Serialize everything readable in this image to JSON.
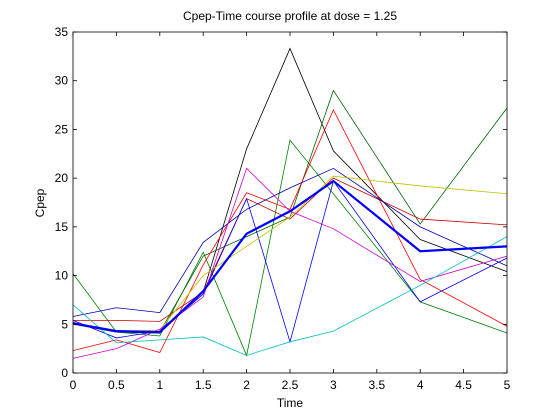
{
  "chart_data": {
    "type": "line",
    "title": "Cpep-Time course profile at dose = 1.25",
    "xlabel": "Time",
    "ylabel": "Cpep",
    "xlim": [
      0,
      5
    ],
    "ylim": [
      0,
      35
    ],
    "xticks": [
      "0",
      "0.5",
      "1",
      "1.5",
      "2",
      "2.5",
      "3",
      "3.5",
      "4",
      "4.5",
      "5"
    ],
    "yticks": [
      "0",
      "5",
      "10",
      "15",
      "20",
      "25",
      "30",
      "35"
    ],
    "grid": false,
    "legend": "none",
    "x": [
      0,
      0.5,
      1,
      1.5,
      2,
      2.5,
      3,
      4,
      5
    ],
    "series": [
      {
        "color": "#000000",
        "values": [
          5.0,
          4.2,
          4.1,
          8.3,
          23.0,
          33.3,
          22.8,
          13.7,
          10.4
        ],
        "width": 0.8
      },
      {
        "color": "#008000",
        "values": [
          10.2,
          4.2,
          3.8,
          12.4,
          1.8,
          23.9,
          18.4,
          7.3,
          4.1
        ],
        "width": 0.8
      },
      {
        "color": "#006400",
        "values": [
          5.2,
          4.2,
          4.2,
          12.0,
          14.0,
          16.0,
          29.0,
          15.3,
          27.2
        ],
        "width": 0.8
      },
      {
        "color": "#ff0000",
        "values": [
          2.3,
          3.4,
          2.1,
          11.1,
          18.5,
          16.8,
          27.0,
          9.6,
          4.8
        ],
        "width": 0.8
      },
      {
        "color": "#cc0000",
        "values": [
          5.4,
          5.4,
          5.3,
          8.3,
          17.9,
          15.8,
          20.0,
          15.8,
          15.2
        ],
        "width": 0.8
      },
      {
        "color": "#0000ff",
        "values": [
          5.4,
          3.6,
          4.3,
          8.1,
          17.9,
          3.2,
          19.7,
          7.3,
          11.8
        ],
        "width": 0.8
      },
      {
        "color": "#0000aa",
        "values": [
          5.8,
          6.7,
          6.2,
          13.4,
          16.8,
          19.0,
          21.0,
          15.0,
          11.0
        ],
        "width": 0.8
      },
      {
        "color": "#c0c000",
        "values": [
          5.0,
          4.3,
          4.4,
          10.0,
          13.0,
          16.0,
          20.2,
          19.2,
          18.4
        ],
        "width": 0.8
      },
      {
        "color": "#cc00cc",
        "values": [
          1.5,
          2.5,
          4.5,
          7.8,
          21.0,
          16.6,
          14.8,
          9.4,
          12.0
        ],
        "width": 0.8
      },
      {
        "color": "#00bfbf",
        "values": [
          7.0,
          3.1,
          3.4,
          3.7,
          1.8,
          3.2,
          4.3,
          9.0,
          14.0
        ],
        "width": 0.8
      },
      {
        "color": "#0000ff",
        "values": [
          5.1,
          4.3,
          4.2,
          8.4,
          14.3,
          16.6,
          19.7,
          12.5,
          13.0
        ],
        "width": 2.2
      }
    ]
  }
}
